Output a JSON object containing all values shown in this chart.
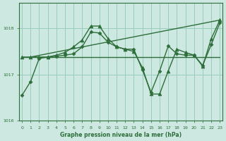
{
  "title": "Graphe pression niveau de la mer (hPa)",
  "background_color": "#cce8e0",
  "grid_color": "#99ccbb",
  "line_color": "#2d6e3a",
  "ylim": [
    1016.0,
    1018.55
  ],
  "yticks": [
    1016,
    1017,
    1018
  ],
  "xlim": [
    -0.3,
    23.3
  ],
  "xticks": [
    0,
    1,
    2,
    3,
    4,
    5,
    6,
    7,
    8,
    9,
    10,
    11,
    12,
    13,
    14,
    15,
    16,
    17,
    18,
    19,
    20,
    21,
    22,
    23
  ],
  "series": [
    {
      "x": [
        0,
        1,
        2,
        3,
        4,
        5,
        6,
        7,
        8,
        9,
        10,
        11,
        12,
        13,
        14,
        15,
        16,
        17,
        18,
        19,
        20,
        21,
        22,
        23
      ],
      "y": [
        1017.38,
        1017.38,
        1017.38,
        1017.38,
        1017.38,
        1017.38,
        1017.38,
        1017.38,
        1017.38,
        1017.38,
        1017.38,
        1017.38,
        1017.38,
        1017.38,
        1017.38,
        1017.38,
        1017.38,
        1017.38,
        1017.38,
        1017.38,
        1017.38,
        1017.38,
        1017.38,
        1017.38
      ],
      "marker": null,
      "markersize": 0,
      "linewidth": 1.0,
      "linestyle": "-"
    },
    {
      "x": [
        0,
        1,
        2,
        3,
        4,
        5,
        6,
        7,
        8,
        9,
        10,
        11,
        12,
        13,
        14,
        15,
        16,
        17,
        18,
        19,
        20,
        21,
        22,
        23
      ],
      "y": [
        1016.55,
        1016.85,
        1017.35,
        1017.38,
        1017.4,
        1017.42,
        1017.45,
        1017.6,
        1017.92,
        1017.9,
        1017.7,
        1017.6,
        1017.55,
        1017.55,
        1017.1,
        1016.62,
        1017.08,
        1017.62,
        1017.45,
        1017.42,
        1017.42,
        1017.2,
        1017.65,
        1018.12
      ],
      "marker": "D",
      "markersize": 2.5,
      "linewidth": 1.0,
      "linestyle": "-"
    },
    {
      "x": [
        0,
        1,
        2,
        3,
        4,
        5,
        6,
        7,
        8,
        9,
        10,
        11,
        12,
        13,
        14,
        15,
        16,
        17,
        18,
        19,
        20,
        21,
        22,
        23
      ],
      "y": [
        1017.38,
        1017.38,
        1017.38,
        1017.38,
        1017.42,
        1017.48,
        1017.6,
        1017.75,
        1018.05,
        1018.05,
        1017.78,
        1017.6,
        1017.55,
        1017.5,
        1017.15,
        1016.58,
        1016.58,
        1017.08,
        1017.55,
        1017.48,
        1017.42,
        1017.18,
        1017.78,
        1018.18
      ],
      "marker": "^",
      "markersize": 3.5,
      "linewidth": 1.0,
      "linestyle": "-"
    },
    {
      "x": [
        1,
        23
      ],
      "y": [
        1017.38,
        1018.18
      ],
      "marker": null,
      "markersize": 0,
      "linewidth": 1.0,
      "linestyle": "-"
    }
  ]
}
